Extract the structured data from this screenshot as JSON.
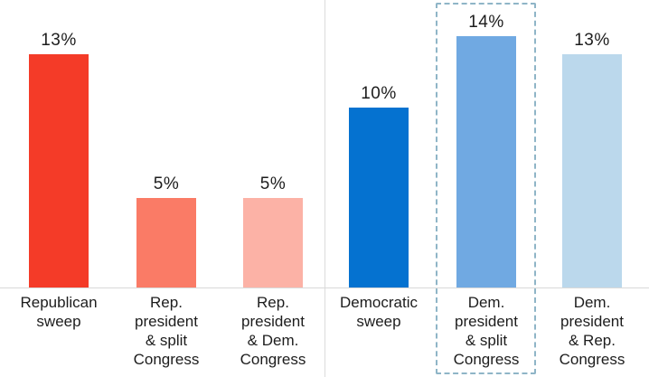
{
  "chart": {
    "background_color": "#ffffff",
    "axis_line_color": "#d9d9d9",
    "divider_line_color": "#dcdcdc",
    "highlight_box_color": "#8fb5c7",
    "text_color": "#1d1d1d"
  },
  "chart_data": {
    "type": "bar",
    "title": "",
    "xlabel": "",
    "ylabel": "",
    "unit": "%",
    "ylim": [
      0,
      16
    ],
    "grid": false,
    "legend": false,
    "categories": [
      "Republican sweep",
      "Rep. president & split Congress",
      "Rep. president & Dem. Congress",
      "Democratic sweep",
      "Dem. president & split Congress",
      "Dem. president & Rep. Congress"
    ],
    "values": [
      13,
      5,
      5,
      10,
      14,
      13
    ],
    "groups": [
      "republican",
      "republican",
      "republican",
      "democratic",
      "democratic",
      "democratic"
    ],
    "highlighted_category": "Dem. president & split Congress",
    "bars": [
      {
        "value": 13,
        "value_label": "13%",
        "category_label": "Republican\nsweep",
        "color": "#f43b28",
        "highlighted": false
      },
      {
        "value": 5,
        "value_label": "5%",
        "category_label": "Rep.\npresident\n& split\nCongress",
        "color": "#fa7b66",
        "highlighted": false
      },
      {
        "value": 5,
        "value_label": "5%",
        "category_label": "Rep.\npresident\n& Dem.\nCongress",
        "color": "#fcb2a6",
        "highlighted": false
      },
      {
        "value": 10,
        "value_label": "10%",
        "category_label": "Democratic\nsweep",
        "color": "#0572d0",
        "highlighted": false
      },
      {
        "value": 14,
        "value_label": "14%",
        "category_label": "Dem.\npresident\n& split\nCongress",
        "color": "#70a9e2",
        "highlighted": true
      },
      {
        "value": 13,
        "value_label": "13%",
        "category_label": "Dem.\npresident\n& Rep.\nCongress",
        "color": "#bbd8ec",
        "highlighted": false
      }
    ]
  }
}
